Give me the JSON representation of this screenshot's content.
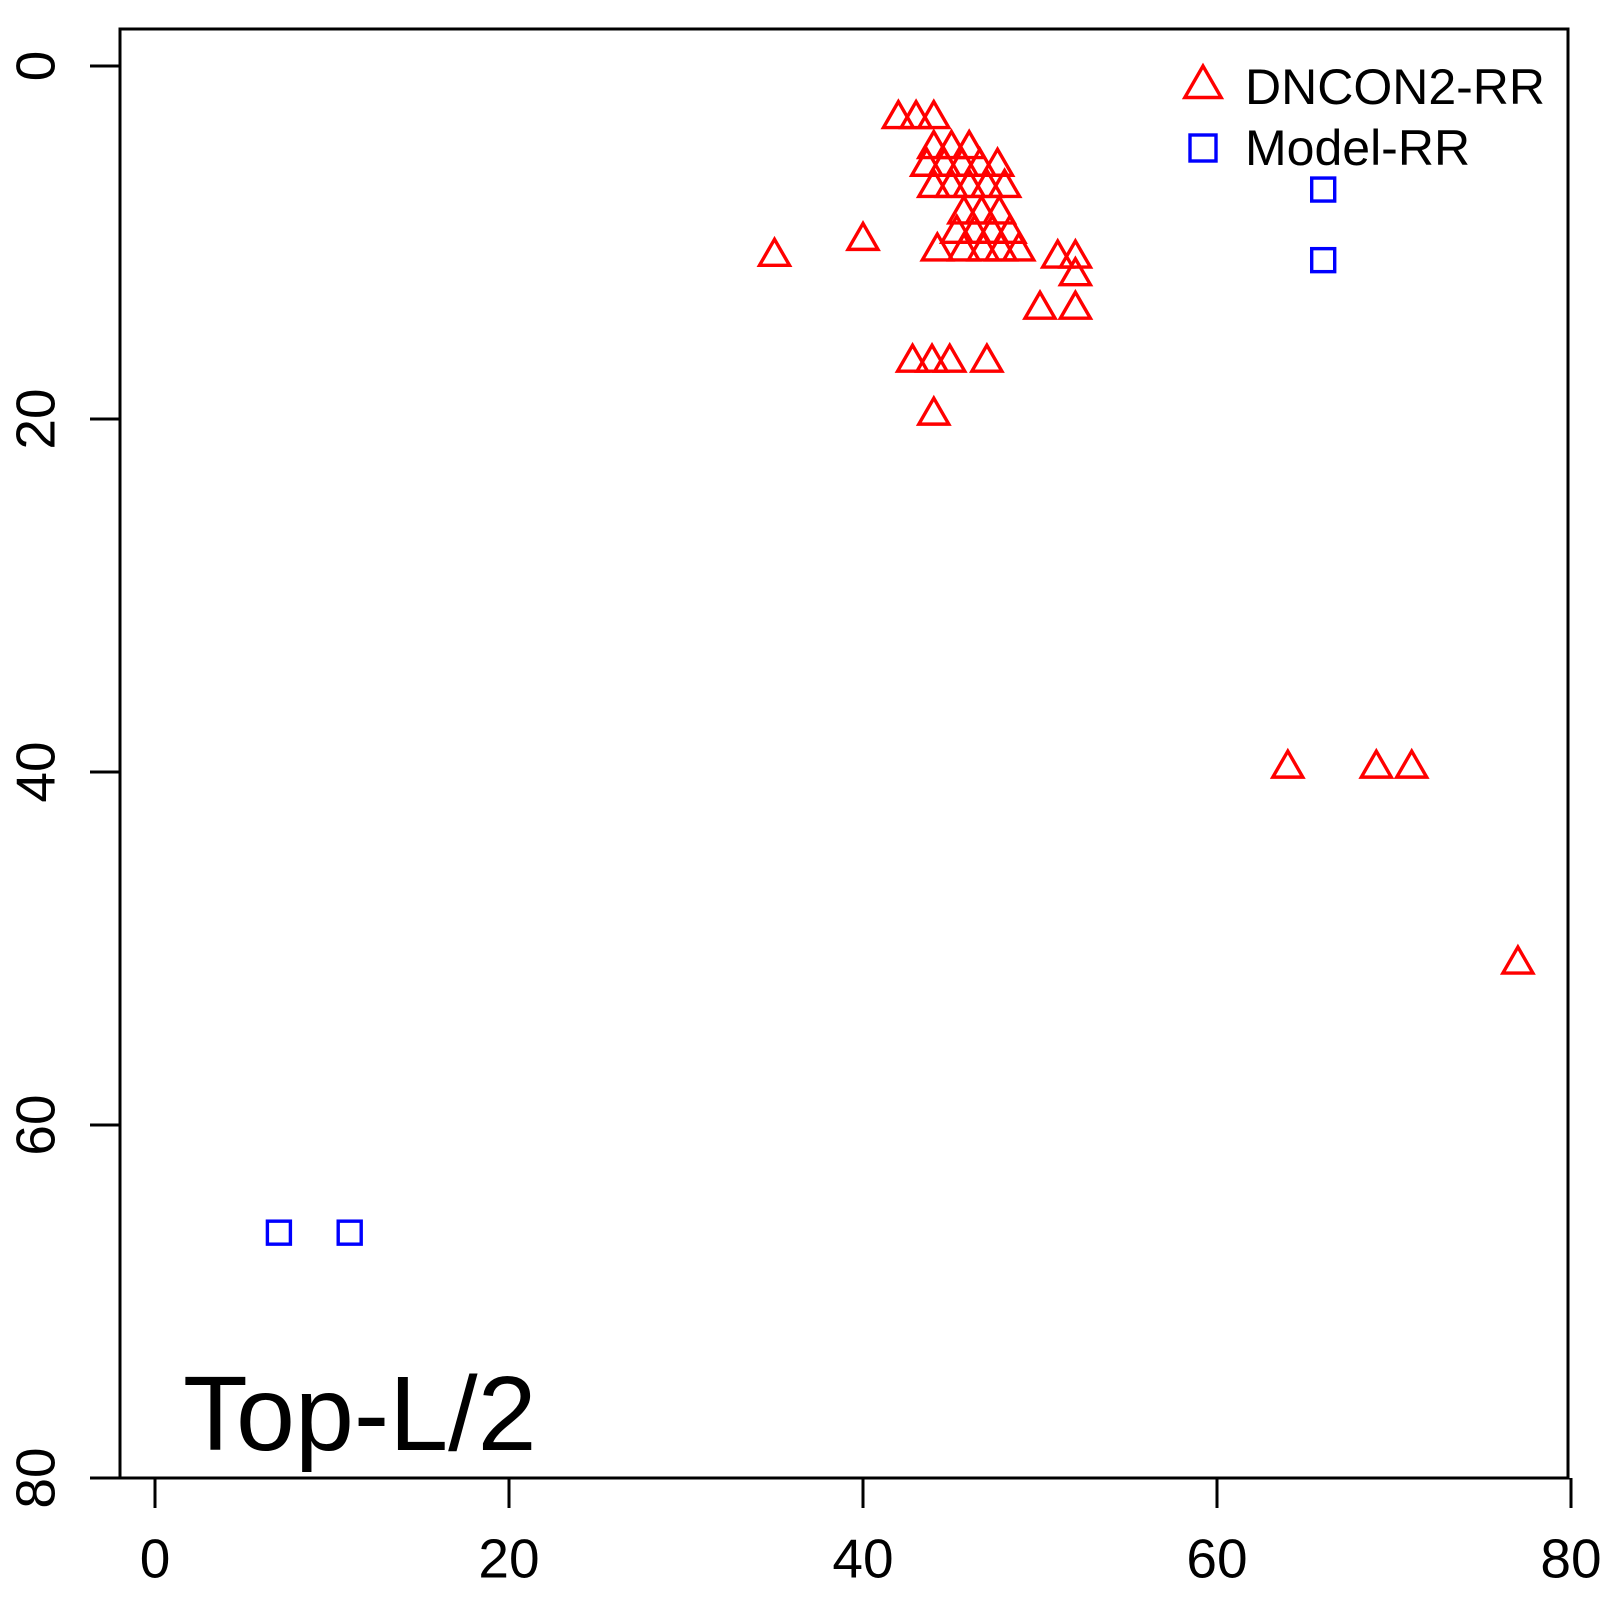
{
  "chart_data": {
    "type": "scatter",
    "title": "",
    "xlabel": "",
    "ylabel": "",
    "annotation": "Top-L/2",
    "axis_color": "#000000",
    "background": "#ffffff",
    "grid": false,
    "x_ticks": [
      0,
      20,
      40,
      60,
      80
    ],
    "y_ticks": [
      0,
      20,
      40,
      60,
      80
    ],
    "xlim": [
      -2,
      80
    ],
    "ylim": [
      -2,
      80
    ],
    "y_axis_reversed": true,
    "legend_position": "top-right",
    "series": [
      {
        "name": "DNCON2-RR",
        "marker": "triangle",
        "color": "#ff0000",
        "points": [
          [
            42,
            3
          ],
          [
            43,
            3
          ],
          [
            44,
            3
          ],
          [
            44,
            4.7
          ],
          [
            45,
            4.7
          ],
          [
            46,
            4.7
          ],
          [
            43.6,
            5.7
          ],
          [
            44.6,
            5.7
          ],
          [
            45.6,
            5.7
          ],
          [
            46.6,
            5.7
          ],
          [
            47.6,
            5.7
          ],
          [
            44,
            6.9
          ],
          [
            45,
            6.9
          ],
          [
            46,
            6.9
          ],
          [
            47,
            6.9
          ],
          [
            48,
            6.9
          ],
          [
            45.7,
            8.4
          ],
          [
            46.7,
            8.4
          ],
          [
            47.7,
            8.4
          ],
          [
            45.3,
            9.5
          ],
          [
            46.3,
            9.5
          ],
          [
            47.3,
            9.5
          ],
          [
            48.3,
            9.5
          ],
          [
            44.2,
            10.5
          ],
          [
            45.7,
            10.5
          ],
          [
            46.8,
            10.5
          ],
          [
            47.8,
            10.5
          ],
          [
            48.8,
            10.5
          ],
          [
            35,
            10.8
          ],
          [
            40,
            9.9
          ],
          [
            51,
            10.9
          ],
          [
            52,
            10.9
          ],
          [
            52,
            11.9
          ],
          [
            50,
            13.8
          ],
          [
            52,
            13.8
          ],
          [
            42.8,
            16.8
          ],
          [
            43.9,
            16.8
          ],
          [
            44.9,
            16.8
          ],
          [
            47,
            16.8
          ],
          [
            44,
            19.8
          ],
          [
            64,
            39.8
          ],
          [
            69,
            39.8
          ],
          [
            71,
            39.8
          ],
          [
            77,
            50.9
          ]
        ]
      },
      {
        "name": "Model-RR",
        "marker": "square",
        "color": "#0000ff",
        "points": [
          [
            7,
            66.1
          ],
          [
            11,
            66.1
          ],
          [
            66,
            7
          ],
          [
            66,
            11
          ]
        ]
      }
    ]
  }
}
